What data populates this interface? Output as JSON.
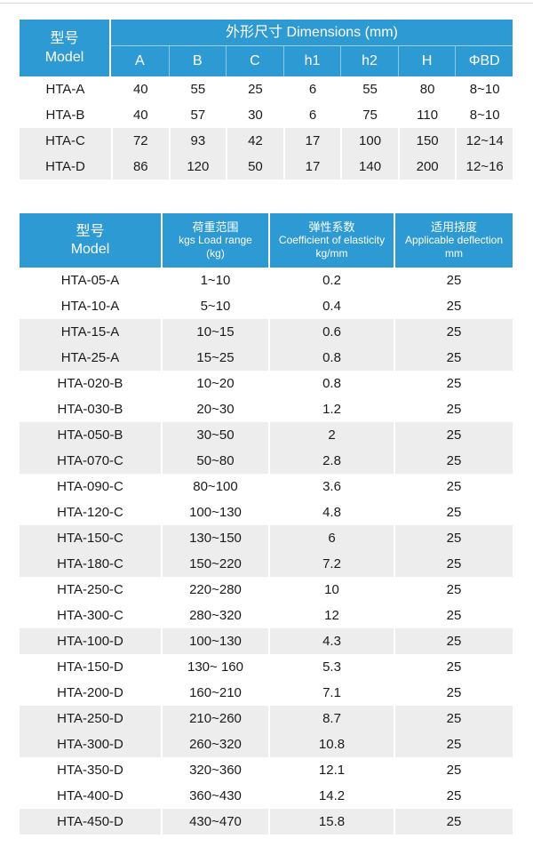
{
  "theme": {
    "accent_blue": "#2E9AD3",
    "stripe_gray": "#EDEDED",
    "text_color": "#1B1B1B",
    "header_text_color": "#FFFFFF",
    "top_divider_color": "#DCDCDC"
  },
  "dimensions_table": {
    "model_header": {
      "zh": "型号",
      "en": "Model"
    },
    "group_header": "外形尺寸 Dimensions (mm)",
    "columns": [
      "A",
      "B",
      "C",
      "h1",
      "h2",
      "H",
      "ΦBD"
    ],
    "rows": [
      {
        "model": "HTA-A",
        "values": [
          "40",
          "55",
          "25",
          "6",
          "55",
          "80",
          "8~10"
        ],
        "shaded": false
      },
      {
        "model": "HTA-B",
        "values": [
          "40",
          "57",
          "30",
          "6",
          "75",
          "110",
          "8~10"
        ],
        "shaded": false
      },
      {
        "model": "HTA-C",
        "values": [
          "72",
          "93",
          "42",
          "17",
          "100",
          "150",
          "12~14"
        ],
        "shaded": true
      },
      {
        "model": "HTA-D",
        "values": [
          "86",
          "120",
          "50",
          "17",
          "140",
          "200",
          "12~16"
        ],
        "shaded": true
      }
    ]
  },
  "spec_table": {
    "headers": [
      {
        "lines": [
          "型号",
          "Model"
        ]
      },
      {
        "lines": [
          "荷重范围",
          "kgs Load range",
          "(kg)"
        ]
      },
      {
        "lines": [
          "弹性系数",
          "Coefficient of elasticity",
          "kg/mm"
        ]
      },
      {
        "lines": [
          "适用挠度",
          "Applicable deflection",
          "mm"
        ]
      }
    ],
    "rows": [
      {
        "model": "HTA-05-A",
        "load": "1~10",
        "coef": "0.2",
        "defl": "25",
        "shaded": false
      },
      {
        "model": "HTA-10-A",
        "load": "5~10",
        "coef": "0.4",
        "defl": "25",
        "shaded": false
      },
      {
        "model": "HTA-15-A",
        "load": "10~15",
        "coef": "0.6",
        "defl": "25",
        "shaded": true
      },
      {
        "model": "HTA-25-A",
        "load": "15~25",
        "coef": "0.8",
        "defl": "25",
        "shaded": true
      },
      {
        "model": "HTA-020-B",
        "load": "10~20",
        "coef": "0.8",
        "defl": "25",
        "shaded": false
      },
      {
        "model": "HTA-030-B",
        "load": "20~30",
        "coef": "1.2",
        "defl": "25",
        "shaded": false
      },
      {
        "model": "HTA-050-B",
        "load": "30~50",
        "coef": "2",
        "defl": "25",
        "shaded": true
      },
      {
        "model": "HTA-070-C",
        "load": "50~80",
        "coef": "2.8",
        "defl": "25",
        "shaded": true
      },
      {
        "model": "HTA-090-C",
        "load": "80~100",
        "coef": "3.6",
        "defl": "25",
        "shaded": false
      },
      {
        "model": "HTA-120-C",
        "load": "100~130",
        "coef": "4.8",
        "defl": "25",
        "shaded": false
      },
      {
        "model": "HTA-150-C",
        "load": "130~150",
        "coef": "6",
        "defl": "25",
        "shaded": true
      },
      {
        "model": "HTA-180-C",
        "load": "150~220",
        "coef": "7.2",
        "defl": "25",
        "shaded": true
      },
      {
        "model": "HTA-250-C",
        "load": "220~280",
        "coef": "10",
        "defl": "25",
        "shaded": false
      },
      {
        "model": "HTA-300-C",
        "load": "280~320",
        "coef": "12",
        "defl": "25",
        "shaded": false
      },
      {
        "model": "HTA-100-D",
        "load": "100~130",
        "coef": "4.3",
        "defl": "25",
        "shaded": true
      },
      {
        "model": "HTA-150-D",
        "load": "130~ 160",
        "coef": "5.3",
        "defl": "25",
        "shaded": false
      },
      {
        "model": "HTA-200-D",
        "load": "160~210",
        "coef": "7.1",
        "defl": "25",
        "shaded": false
      },
      {
        "model": "HTA-250-D",
        "load": "210~260",
        "coef": "8.7",
        "defl": "25",
        "shaded": true
      },
      {
        "model": "HTA-300-D",
        "load": "260~320",
        "coef": "10.8",
        "defl": "25",
        "shaded": true
      },
      {
        "model": "HTA-350-D",
        "load": "320~360",
        "coef": "12.1",
        "defl": "25",
        "shaded": false
      },
      {
        "model": "HTA-400-D",
        "load": "360~430",
        "coef": "14.2",
        "defl": "25",
        "shaded": false
      },
      {
        "model": "HTA-450-D",
        "load": "430~470",
        "coef": "15.8",
        "defl": "25",
        "shaded": true
      }
    ]
  }
}
